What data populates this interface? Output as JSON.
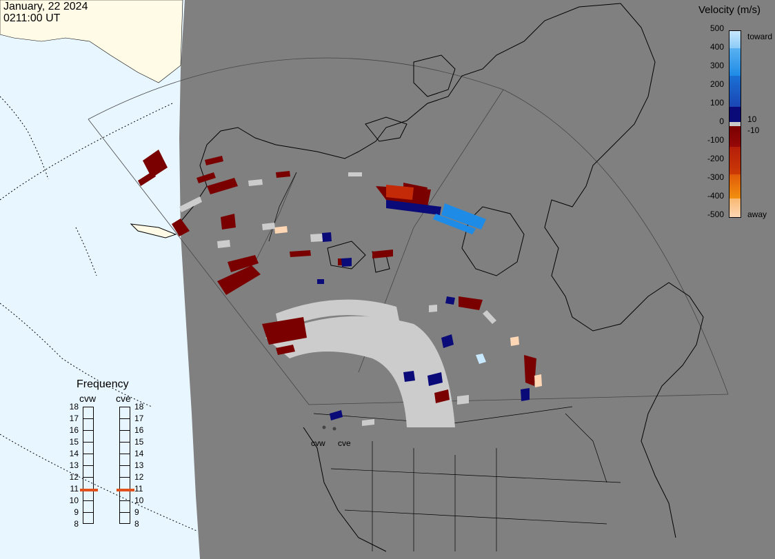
{
  "header": {
    "date": "January, 22 2024",
    "time": "0211:00 UT"
  },
  "legend": {
    "title": "Velocity (m/s)",
    "ticks": [
      "500",
      "400",
      "300",
      "200",
      "100",
      "0",
      "-100",
      "-200",
      "-300",
      "-400",
      "-500"
    ],
    "inner_ticks": [
      "10",
      "-10"
    ],
    "toward_label": "toward",
    "away_label": "away",
    "colors": {
      "toward_high": "#c8e8ff",
      "toward_mid": "#1e8be6",
      "toward_low": "#1a46b4",
      "near_zero_pos": "#0a0a78",
      "zero": "#c8c8c8",
      "near_zero_neg": "#7a0000",
      "away_low": "#b41e0a",
      "away_mid": "#e05a08",
      "away_high": "#ffd7b4"
    }
  },
  "frequency": {
    "title": "Frequency",
    "radars": [
      {
        "name": "cvw",
        "freq_mhz": 10.9
      },
      {
        "name": "cve",
        "freq_mhz": 10.9
      }
    ],
    "scale": [
      "18",
      "17",
      "16",
      "15",
      "14",
      "13",
      "12",
      "11",
      "10",
      "9",
      "8"
    ],
    "marker_color": "#e2501c"
  },
  "map": {
    "ocean_color": "#e8f6ff",
    "land_light_color": "#fffbe6",
    "night_color": "#808080",
    "ground_scatter_color": "#cccccc",
    "radar_sites": [
      "cvw",
      "cve"
    ]
  }
}
